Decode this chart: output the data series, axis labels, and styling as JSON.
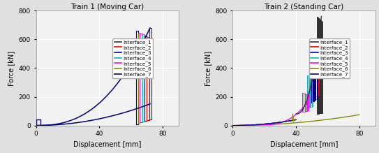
{
  "title1": "Train 1 (Moving Car)",
  "title2": "Train 2 (Standing Car)",
  "xlabel": "Displacement [mm]",
  "ylabel": "Force [kN]",
  "xlim1": [
    0,
    90
  ],
  "ylim": [
    0,
    800
  ],
  "xlim2": [
    0,
    90
  ],
  "xticks": [
    0,
    40,
    80
  ],
  "yticks": [
    0,
    200,
    400,
    600,
    800
  ],
  "legend_labels": [
    "Interface_1",
    "Interface_2",
    "Interface_3",
    "Interface_4",
    "Interface_5",
    "Interface_6",
    "Interface_7"
  ],
  "legend_colors": [
    "#303030",
    "#ff0000",
    "#0000cc",
    "#00bbbb",
    "#ff00ff",
    "#888800",
    "#000080"
  ],
  "bg_color": "#f2f2f2",
  "grid_color": "#ffffff",
  "fig_bg": "#e0e0e0"
}
